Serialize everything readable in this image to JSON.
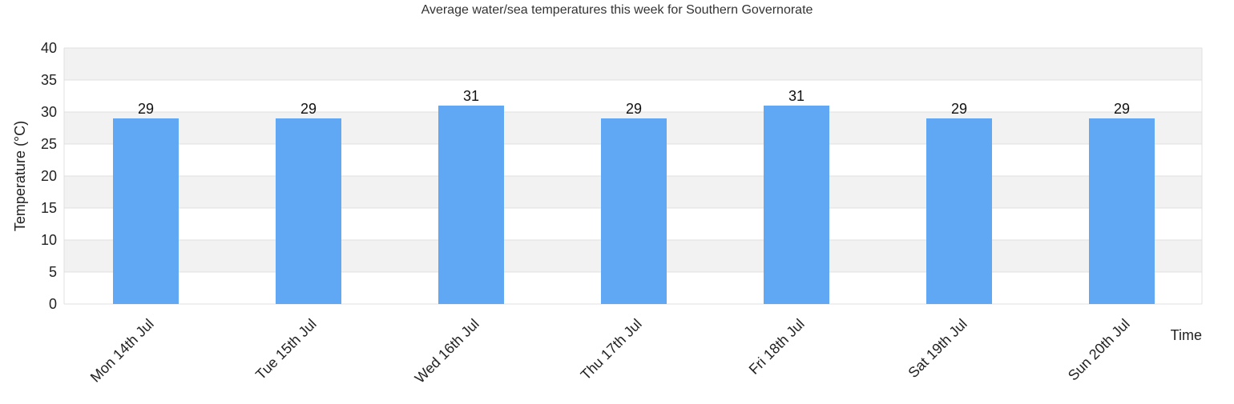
{
  "chart_data": {
    "type": "bar",
    "title": "Average water/sea temperatures this week for Southern Governorate",
    "xlabel": "Time",
    "ylabel": "Temperature (°C)",
    "categories": [
      "Mon 14th Jul",
      "Tue 15th Jul",
      "Wed 16th Jul",
      "Thu 17th Jul",
      "Fri 18th Jul",
      "Sat 19th Jul",
      "Sun 20th Jul"
    ],
    "values": [
      29,
      29,
      31,
      29,
      31,
      29,
      29
    ],
    "ylim": [
      0,
      40
    ],
    "yticks": [
      0,
      5,
      10,
      15,
      20,
      25,
      30,
      35,
      40
    ],
    "data_labels": true,
    "grid": true,
    "legend": "none",
    "colors": {
      "bar": "#60a7f4",
      "band": "#f2f2f2",
      "grid": "#e0e0e0",
      "text": "#222222"
    }
  }
}
